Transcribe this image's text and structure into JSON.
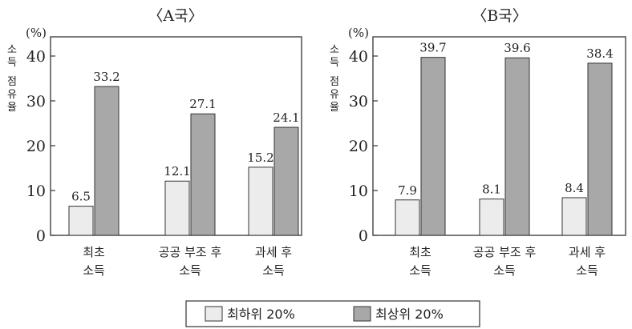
{
  "colors": {
    "bottom_20": "#ececec",
    "top_20": "#a8a8a8",
    "stroke": "#333333"
  },
  "chart_data": [
    {
      "type": "bar",
      "title": "〈A국〉",
      "ylabel": "소득 점유율",
      "unit": "(%)",
      "ylim": [
        0,
        40
      ],
      "yticks": [
        0,
        10,
        20,
        30,
        40
      ],
      "categories": [
        [
          "최초",
          "소득"
        ],
        [
          "공공 부조 후",
          "소득"
        ],
        [
          "과세 후",
          "소득"
        ]
      ],
      "series": [
        {
          "name": "최하위 20%",
          "values": [
            6.5,
            12.1,
            15.2
          ]
        },
        {
          "name": "최상위 20%",
          "values": [
            33.2,
            27.1,
            24.1
          ]
        }
      ],
      "grid": false
    },
    {
      "type": "bar",
      "title": "〈B국〉",
      "ylabel": "소득 점유율",
      "unit": "(%)",
      "ylim": [
        0,
        40
      ],
      "yticks": [
        0,
        10,
        20,
        30,
        40
      ],
      "categories": [
        [
          "최초",
          "소득"
        ],
        [
          "공공 부조 후",
          "소득"
        ],
        [
          "과세 후",
          "소득"
        ]
      ],
      "series": [
        {
          "name": "최하위 20%",
          "values": [
            7.9,
            8.1,
            8.4
          ]
        },
        {
          "name": "최상위 20%",
          "values": [
            39.7,
            39.6,
            38.4
          ]
        }
      ],
      "grid": false
    }
  ],
  "legend": {
    "placement": "bottom-center",
    "items": [
      {
        "label": "최하위 20%",
        "color_key": "bottom_20"
      },
      {
        "label": "최상위 20%",
        "color_key": "top_20"
      }
    ]
  }
}
